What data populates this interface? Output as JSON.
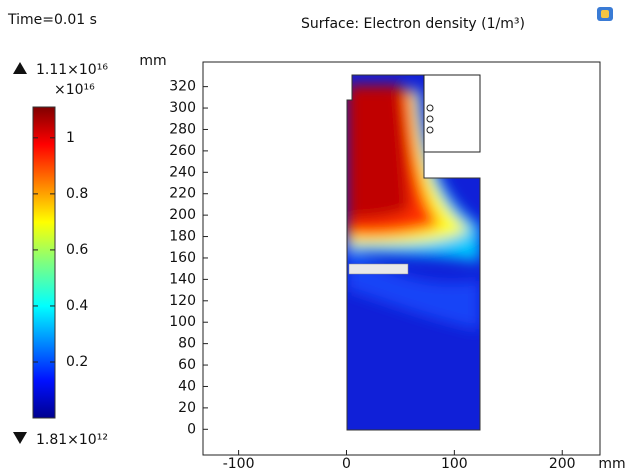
{
  "chart_data": {
    "type": "surface",
    "time_label": "Time=0.01 s",
    "title": "Surface: Electron density (1/m³)",
    "colorbar": {
      "max": {
        "value": 1.11e+16,
        "label": "1.11×10¹⁶"
      },
      "min": {
        "value": 1810000000000.0,
        "label": "1.81×10¹²"
      },
      "scale_label": "×10¹⁶",
      "clim": [
        0.000181,
        1.11
      ],
      "ticks": [
        0.2,
        0.4,
        0.6,
        0.8,
        1
      ],
      "colormap": "jet"
    },
    "xlabel": "mm",
    "ylabel": "mm",
    "xlim": [
      -133,
      235
    ],
    "ylim": [
      -24,
      343
    ],
    "xticks": [
      -100,
      0,
      100,
      200
    ],
    "yticks": [
      0,
      20,
      40,
      60,
      80,
      100,
      120,
      140,
      160,
      180,
      200,
      220,
      240,
      260,
      280,
      300,
      320
    ]
  }
}
